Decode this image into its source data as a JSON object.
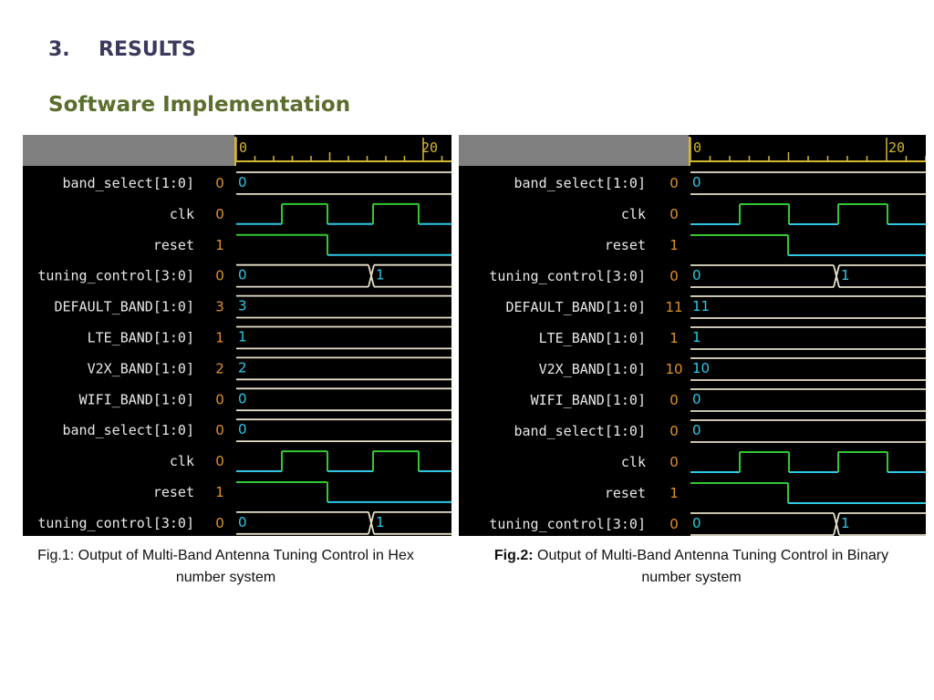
{
  "section": {
    "number": "3.",
    "title": "RESULTS"
  },
  "subtitle": "Software Implementation",
  "colors": {
    "heading": "#3b3a5c",
    "subtitle": "#5a6e2e",
    "wave_green": "#32c832",
    "wave_cyan": "#2ec8e6",
    "bus": "#e6e0c8",
    "value": "#e0902a",
    "signal_name": "#e8e8e8",
    "ruler": "#d4b830"
  },
  "figures": [
    {
      "id": "fig1",
      "ruler_ticks": [
        "0",
        "20"
      ],
      "signals": [
        {
          "name": "band_select[1:0]",
          "value": "0",
          "type": "bus",
          "segments": [
            {
              "label": "0"
            }
          ]
        },
        {
          "name": "clk",
          "value": "0",
          "type": "clk"
        },
        {
          "name": "reset",
          "value": "1",
          "type": "reset"
        },
        {
          "name": "tuning_control[3:0]",
          "value": "0",
          "type": "bus",
          "segments": [
            {
              "label": "0"
            },
            {
              "label": "1"
            }
          ]
        },
        {
          "name": "DEFAULT_BAND[1:0]",
          "value": "3",
          "type": "bus",
          "segments": [
            {
              "label": "3"
            }
          ]
        },
        {
          "name": "LTE_BAND[1:0]",
          "value": "1",
          "type": "bus",
          "segments": [
            {
              "label": "1"
            }
          ]
        },
        {
          "name": "V2X_BAND[1:0]",
          "value": "2",
          "type": "bus",
          "segments": [
            {
              "label": "2"
            }
          ]
        },
        {
          "name": "WIFI_BAND[1:0]",
          "value": "0",
          "type": "bus",
          "segments": [
            {
              "label": "0"
            }
          ]
        },
        {
          "name": "band_select[1:0]",
          "value": "0",
          "type": "bus",
          "segments": [
            {
              "label": "0"
            }
          ]
        },
        {
          "name": "clk",
          "value": "0",
          "type": "clk"
        },
        {
          "name": "reset",
          "value": "1",
          "type": "reset"
        },
        {
          "name": "tuning_control[3:0]",
          "value": "0",
          "type": "bus",
          "segments": [
            {
              "label": "0"
            },
            {
              "label": "1"
            }
          ]
        }
      ],
      "caption_bold": "",
      "caption_text": "Fig.1: Output of  Multi-Band Antenna Tuning Control in Hex number  system"
    },
    {
      "id": "fig2",
      "ruler_ticks": [
        "0",
        "20"
      ],
      "signals": [
        {
          "name": "band_select[1:0]",
          "value": "0",
          "type": "bus",
          "segments": [
            {
              "label": "0"
            }
          ]
        },
        {
          "name": "clk",
          "value": "0",
          "type": "clk"
        },
        {
          "name": "reset",
          "value": "1",
          "type": "reset"
        },
        {
          "name": "tuning_control[3:0]",
          "value": "0",
          "type": "bus",
          "segments": [
            {
              "label": "0"
            },
            {
              "label": "1"
            }
          ]
        },
        {
          "name": "DEFAULT_BAND[1:0]",
          "value": "11",
          "type": "bus",
          "segments": [
            {
              "label": "11"
            }
          ]
        },
        {
          "name": "LTE_BAND[1:0]",
          "value": "1",
          "type": "bus",
          "segments": [
            {
              "label": "1"
            }
          ]
        },
        {
          "name": "V2X_BAND[1:0]",
          "value": "10",
          "type": "bus",
          "segments": [
            {
              "label": "10"
            }
          ]
        },
        {
          "name": "WIFI_BAND[1:0]",
          "value": "0",
          "type": "bus",
          "segments": [
            {
              "label": "0"
            }
          ]
        },
        {
          "name": "band_select[1:0]",
          "value": "0",
          "type": "bus",
          "segments": [
            {
              "label": "0"
            }
          ]
        },
        {
          "name": "clk",
          "value": "0",
          "type": "clk"
        },
        {
          "name": "reset",
          "value": "1",
          "type": "reset"
        },
        {
          "name": "tuning_control[3:0]",
          "value": "0",
          "type": "bus",
          "segments": [
            {
              "label": "0"
            },
            {
              "label": "1"
            }
          ]
        }
      ],
      "caption_bold": "Fig.2:",
      "caption_text": " Output of  Multi-Band Antenna Tuning Control in Binary number  system"
    }
  ]
}
